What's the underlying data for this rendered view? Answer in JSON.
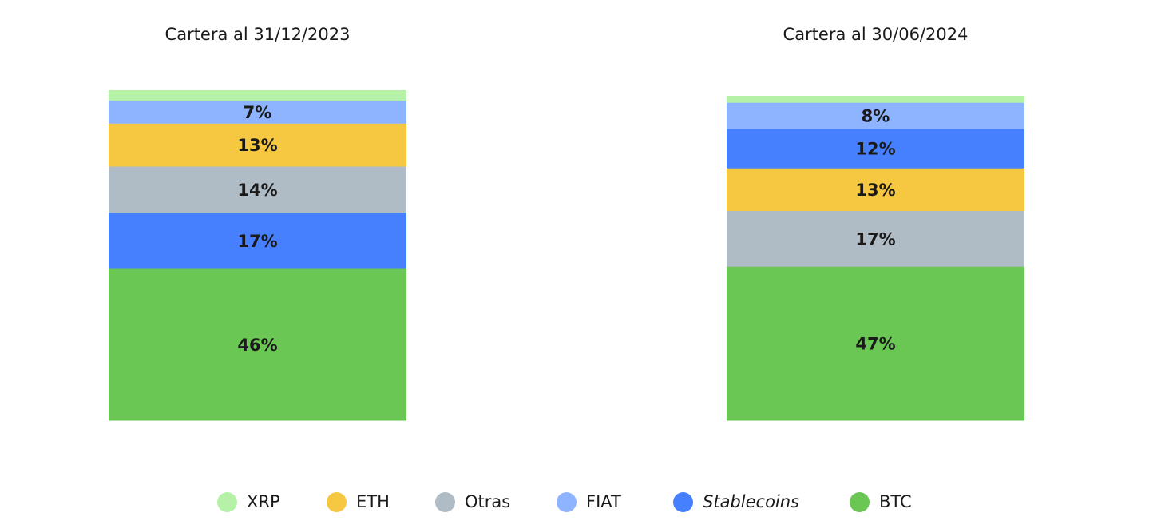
{
  "chart_data": [
    {
      "type": "bar",
      "stacked": true,
      "percent_stacked": true,
      "title": "Cartera al 31/12/2023",
      "xlabel": "",
      "ylabel": "",
      "ylim": [
        0,
        100
      ],
      "grid": false,
      "legend": "bottom",
      "series": [
        {
          "name": "BTC",
          "value": 46,
          "label": "46%"
        },
        {
          "name": "Stablecoins",
          "value": 17,
          "label": "17%"
        },
        {
          "name": "Otras",
          "value": 14,
          "label": "14%"
        },
        {
          "name": "ETH",
          "value": 13,
          "label": "13%"
        },
        {
          "name": "FIAT",
          "value": 7,
          "label": "7%"
        },
        {
          "name": "XRP",
          "value": 3,
          "label": ""
        }
      ]
    },
    {
      "type": "bar",
      "stacked": true,
      "percent_stacked": true,
      "title": "Cartera al 30/06/2024",
      "xlabel": "",
      "ylabel": "",
      "ylim": [
        0,
        100
      ],
      "grid": false,
      "legend": "bottom",
      "series": [
        {
          "name": "BTC",
          "value": 47,
          "label": "47%"
        },
        {
          "name": "Otras",
          "value": 17,
          "label": "17%"
        },
        {
          "name": "ETH",
          "value": 13,
          "label": "13%"
        },
        {
          "name": "Stablecoins",
          "value": 12,
          "label": "12%"
        },
        {
          "name": "FIAT",
          "value": 8,
          "label": "8%"
        },
        {
          "name": "XRP",
          "value": 2,
          "label": ""
        }
      ]
    }
  ],
  "colors": {
    "XRP": "#b5f2a8",
    "ETH": "#f6c841",
    "Otras": "#b0bcc5",
    "FIAT": "#8fb4ff",
    "Stablecoins": "#4680ff",
    "BTC": "#6bc754"
  },
  "legend": [
    {
      "name": "XRP",
      "label": "XRP",
      "italic": false
    },
    {
      "name": "ETH",
      "label": "ETH",
      "italic": false
    },
    {
      "name": "Otras",
      "label": "Otras",
      "italic": false
    },
    {
      "name": "FIAT",
      "label": "FIAT",
      "italic": false
    },
    {
      "name": "Stablecoins",
      "label": "Stablecoins",
      "italic": true
    },
    {
      "name": "BTC",
      "label": "BTC",
      "italic": false
    }
  ]
}
